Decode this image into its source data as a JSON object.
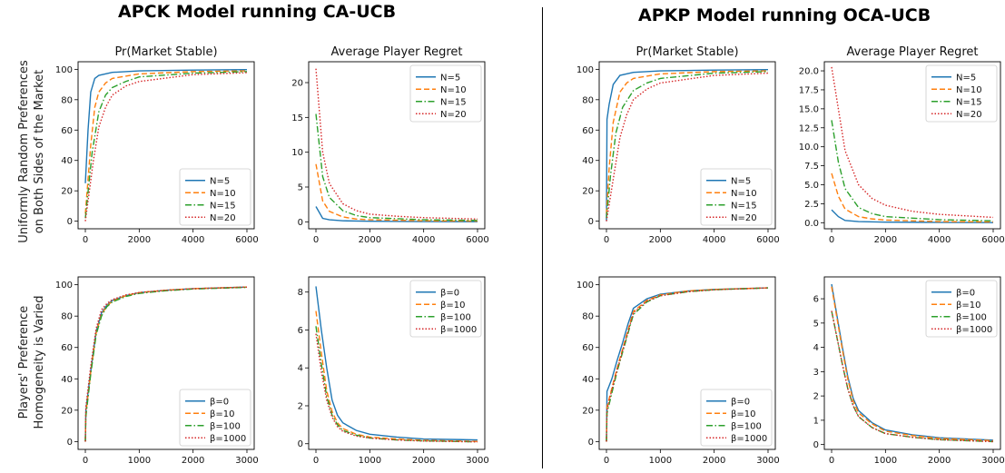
{
  "sections": [
    {
      "title": "APCK Model running CA-UCB"
    },
    {
      "title": "APKP Model running OCA-UCB"
    }
  ],
  "row_labels": [
    [
      "Uniformly Random Preferences",
      "on Both Sides of the Market"
    ],
    [
      "Players' Preference",
      "Homogeneity is Varied"
    ]
  ],
  "colors": {
    "s1": "#1f77b4",
    "s2": "#ff7f0e",
    "s3": "#2ca02c",
    "s4": "#d62728"
  },
  "chart_data": [
    {
      "type": "line",
      "title": "Pr(Market Stable)",
      "xlim": [
        0,
        6000
      ],
      "ylim": [
        0,
        100
      ],
      "xticks": [
        0,
        2000,
        4000,
        6000
      ],
      "yticks": [
        0,
        20,
        40,
        60,
        80,
        100
      ],
      "legend": "bottom-right",
      "series": [
        {
          "name": "N=5",
          "x": [
            0,
            100,
            200,
            350,
            500,
            1000,
            2000,
            4000,
            6000
          ],
          "y": [
            25,
            60,
            85,
            94,
            96,
            98,
            99,
            99.5,
            99.8
          ]
        },
        {
          "name": "N=10",
          "x": [
            0,
            200,
            350,
            500,
            750,
            1000,
            2000,
            4000,
            6000
          ],
          "y": [
            5,
            50,
            75,
            85,
            91,
            94,
            97,
            98.5,
            99
          ]
        },
        {
          "name": "N=15",
          "x": [
            0,
            250,
            500,
            750,
            1000,
            1500,
            2000,
            4000,
            6000
          ],
          "y": [
            2,
            45,
            72,
            83,
            88,
            92,
            95,
            97.5,
            98.5
          ]
        },
        {
          "name": "N=20",
          "x": [
            0,
            300,
            500,
            750,
            1000,
            1500,
            2000,
            4000,
            6000
          ],
          "y": [
            0,
            40,
            62,
            75,
            83,
            89,
            92,
            96.5,
            97.8
          ]
        }
      ]
    },
    {
      "type": "line",
      "title": "Average Player Regret",
      "xlim": [
        0,
        6000
      ],
      "ylim": [
        -1,
        23
      ],
      "xticks": [
        0,
        2000,
        4000,
        6000
      ],
      "yticks": [
        0,
        5,
        10,
        15,
        20
      ],
      "legend": "top-right",
      "series": [
        {
          "name": "N=5",
          "x": [
            0,
            250,
            500,
            1000,
            2000,
            4000,
            6000
          ],
          "y": [
            2.2,
            0.5,
            0.3,
            0.15,
            0.08,
            0.04,
            0.02
          ]
        },
        {
          "name": "N=10",
          "x": [
            0,
            250,
            500,
            1000,
            1500,
            2000,
            4000,
            6000
          ],
          "y": [
            8.3,
            3.0,
            1.5,
            0.7,
            0.4,
            0.3,
            0.15,
            0.1
          ]
        },
        {
          "name": "N=15",
          "x": [
            0,
            250,
            500,
            1000,
            1500,
            2000,
            4000,
            6000
          ],
          "y": [
            15.5,
            6.5,
            3.5,
            1.6,
            0.9,
            0.6,
            0.3,
            0.2
          ]
        },
        {
          "name": "N=20",
          "x": [
            0,
            250,
            500,
            1000,
            1500,
            2000,
            3000,
            4000,
            6000
          ],
          "y": [
            22,
            10,
            5.5,
            2.6,
            1.6,
            1.1,
            0.8,
            0.6,
            0.4
          ]
        }
      ]
    },
    {
      "type": "line",
      "title": "Pr(Market Stable)",
      "xlim": [
        0,
        6000
      ],
      "ylim": [
        0,
        100
      ],
      "xticks": [
        0,
        2000,
        4000,
        6000
      ],
      "yticks": [
        0,
        20,
        40,
        60,
        80,
        100
      ],
      "legend": "bottom-right",
      "series": [
        {
          "name": "N=5",
          "x": [
            0,
            20,
            100,
            250,
            500,
            1000,
            2000,
            4000,
            6000
          ],
          "y": [
            0,
            67,
            77,
            90,
            96,
            98,
            99,
            99.5,
            99.8
          ]
        },
        {
          "name": "N=10",
          "x": [
            0,
            100,
            250,
            500,
            750,
            1000,
            2000,
            4000,
            6000
          ],
          "y": [
            5,
            35,
            65,
            85,
            91,
            94,
            97,
            98.5,
            99
          ]
        },
        {
          "name": "N=15",
          "x": [
            0,
            150,
            350,
            600,
            1000,
            1500,
            2000,
            4000,
            6000
          ],
          "y": [
            2,
            30,
            58,
            75,
            86,
            91,
            94,
            97.5,
            98.5
          ]
        },
        {
          "name": "N=20",
          "x": [
            0,
            200,
            500,
            750,
            1000,
            1500,
            2000,
            4000,
            6000
          ],
          "y": [
            0,
            22,
            55,
            70,
            80,
            87,
            91,
            96,
            97.5
          ]
        }
      ]
    },
    {
      "type": "line",
      "title": "Average Player Regret",
      "xlim": [
        0,
        6000
      ],
      "ylim": [
        -0.8,
        21.2
      ],
      "xticks": [
        0,
        2000,
        4000,
        6000
      ],
      "yticks": [
        0,
        2.5,
        5,
        7.5,
        10,
        12.5,
        15,
        17.5,
        20
      ],
      "ytick_labels": [
        "0.0",
        "2.5",
        "5.0",
        "7.5",
        "10.0",
        "12.5",
        "15.0",
        "17.5",
        "20.0"
      ],
      "legend": "top-right",
      "series": [
        {
          "name": "N=5",
          "x": [
            0,
            250,
            500,
            1000,
            2000,
            4000,
            6000
          ],
          "y": [
            1.7,
            0.8,
            0.3,
            0.15,
            0.08,
            0.04,
            0.02
          ]
        },
        {
          "name": "N=10",
          "x": [
            0,
            250,
            500,
            1000,
            1500,
            2000,
            4000,
            6000
          ],
          "y": [
            6.5,
            3.5,
            1.8,
            0.8,
            0.5,
            0.35,
            0.15,
            0.1
          ]
        },
        {
          "name": "N=15",
          "x": [
            0,
            250,
            500,
            1000,
            1500,
            2000,
            4000,
            6000
          ],
          "y": [
            13.5,
            8,
            4.5,
            2,
            1.2,
            0.8,
            0.4,
            0.25
          ]
        },
        {
          "name": "N=20",
          "x": [
            0,
            250,
            500,
            1000,
            1500,
            2000,
            3000,
            4000,
            6000
          ],
          "y": [
            20.5,
            15,
            9.5,
            5,
            3.2,
            2.3,
            1.5,
            1.1,
            0.7
          ]
        }
      ]
    },
    {
      "type": "line",
      "title": "",
      "xlim": [
        0,
        3000
      ],
      "ylim": [
        0,
        100
      ],
      "xticks": [
        0,
        1000,
        2000,
        3000
      ],
      "yticks": [
        0,
        20,
        40,
        60,
        80,
        100
      ],
      "legend": "bottom-right",
      "series": [
        {
          "name": "β=0",
          "x": [
            0,
            10,
            100,
            200,
            300,
            400,
            500,
            750,
            1000,
            1500,
            2000,
            3000
          ],
          "y": [
            0,
            20,
            45,
            70,
            82,
            87,
            90,
            93,
            95,
            96.5,
            97.5,
            98.5
          ]
        },
        {
          "name": "β=10",
          "x": [
            0,
            10,
            100,
            200,
            300,
            400,
            500,
            750,
            1000,
            1500,
            2000,
            3000
          ],
          "y": [
            0,
            18,
            44,
            69,
            81,
            86.5,
            89.5,
            93,
            95,
            96.5,
            97.5,
            98.5
          ]
        },
        {
          "name": "β=100",
          "x": [
            0,
            10,
            100,
            200,
            300,
            400,
            500,
            750,
            1000,
            1500,
            2000,
            3000
          ],
          "y": [
            0,
            16,
            43,
            68,
            80,
            86,
            89,
            92.5,
            94.5,
            96.2,
            97.3,
            98.3
          ]
        },
        {
          "name": "β=1000",
          "x": [
            0,
            10,
            100,
            200,
            300,
            400,
            500,
            750,
            1000,
            1500,
            2000,
            3000
          ],
          "y": [
            0,
            22,
            48,
            72,
            84,
            88,
            90.5,
            93.5,
            95,
            96.5,
            97.5,
            98.5
          ]
        }
      ]
    },
    {
      "type": "line",
      "title": "",
      "xlim": [
        0,
        3000
      ],
      "ylim": [
        -0.3,
        8.8
      ],
      "xticks": [
        0,
        1000,
        2000,
        3000
      ],
      "yticks": [
        0,
        2,
        4,
        6,
        8
      ],
      "legend": "top-right",
      "series": [
        {
          "name": "β=0",
          "x": [
            0,
            100,
            200,
            300,
            400,
            500,
            750,
            1000,
            1500,
            2000,
            3000
          ],
          "y": [
            8.3,
            6,
            4,
            2.3,
            1.5,
            1.1,
            0.7,
            0.5,
            0.35,
            0.25,
            0.2
          ]
        },
        {
          "name": "β=10",
          "x": [
            0,
            100,
            200,
            300,
            400,
            500,
            750,
            1000,
            1500,
            2000,
            3000
          ],
          "y": [
            7,
            4.8,
            2.8,
            1.7,
            1.1,
            0.8,
            0.5,
            0.35,
            0.25,
            0.18,
            0.12
          ]
        },
        {
          "name": "β=100",
          "x": [
            0,
            100,
            200,
            300,
            400,
            500,
            750,
            1000,
            1500,
            2000,
            3000
          ],
          "y": [
            6.2,
            4.2,
            2.5,
            1.5,
            1.0,
            0.7,
            0.45,
            0.3,
            0.2,
            0.15,
            0.1
          ]
        },
        {
          "name": "β=1000",
          "x": [
            0,
            100,
            200,
            300,
            400,
            500,
            750,
            1000,
            1500,
            2000,
            3000
          ],
          "y": [
            5.8,
            3.8,
            2.3,
            1.4,
            0.9,
            0.65,
            0.4,
            0.3,
            0.2,
            0.14,
            0.1
          ]
        }
      ]
    },
    {
      "type": "line",
      "title": "",
      "xlim": [
        0,
        3000
      ],
      "ylim": [
        0,
        100
      ],
      "xticks": [
        0,
        1000,
        2000,
        3000
      ],
      "yticks": [
        0,
        20,
        40,
        60,
        80,
        100
      ],
      "legend": "bottom-right",
      "series": [
        {
          "name": "β=0",
          "x": [
            0,
            10,
            100,
            200,
            300,
            400,
            500,
            750,
            1000,
            1500,
            2000,
            3000
          ],
          "y": [
            0,
            32,
            40,
            52,
            63,
            75,
            85,
            91,
            94,
            96,
            97,
            98
          ]
        },
        {
          "name": "β=10",
          "x": [
            0,
            10,
            100,
            200,
            300,
            400,
            500,
            750,
            1000,
            1500,
            2000,
            3000
          ],
          "y": [
            0,
            22,
            34,
            47,
            59,
            71,
            83,
            90,
            93.5,
            96,
            97,
            98
          ]
        },
        {
          "name": "β=100",
          "x": [
            0,
            10,
            100,
            200,
            300,
            400,
            500,
            750,
            1000,
            1500,
            2000,
            3000
          ],
          "y": [
            0,
            18,
            31,
            45,
            57,
            69,
            81,
            89,
            93,
            95.5,
            96.8,
            98
          ]
        },
        {
          "name": "β=1000",
          "x": [
            0,
            10,
            100,
            200,
            300,
            400,
            500,
            750,
            1000,
            1500,
            2000,
            3000
          ],
          "y": [
            0,
            20,
            33,
            46,
            58,
            70,
            82,
            89.5,
            93,
            95.5,
            96.8,
            98
          ]
        }
      ]
    },
    {
      "type": "line",
      "title": "",
      "xlim": [
        0,
        3000
      ],
      "ylim": [
        -0.2,
        6.9
      ],
      "xticks": [
        0,
        1000,
        2000,
        3000
      ],
      "yticks": [
        0,
        1,
        2,
        3,
        4,
        5,
        6
      ],
      "legend": "top-right",
      "series": [
        {
          "name": "β=0",
          "x": [
            0,
            100,
            200,
            300,
            400,
            500,
            750,
            1000,
            1500,
            2000,
            3000
          ],
          "y": [
            6.6,
            5.3,
            4.0,
            2.8,
            1.9,
            1.4,
            0.9,
            0.6,
            0.4,
            0.28,
            0.18
          ]
        },
        {
          "name": "β=10",
          "x": [
            0,
            100,
            200,
            300,
            400,
            500,
            750,
            1000,
            1500,
            2000,
            3000
          ],
          "y": [
            6.5,
            5.2,
            3.9,
            2.7,
            1.8,
            1.3,
            0.85,
            0.55,
            0.37,
            0.25,
            0.16
          ]
        },
        {
          "name": "β=100",
          "x": [
            0,
            100,
            200,
            300,
            400,
            500,
            750,
            1000,
            1500,
            2000,
            3000
          ],
          "y": [
            5.5,
            4.4,
            3.3,
            2.3,
            1.6,
            1.15,
            0.7,
            0.45,
            0.3,
            0.2,
            0.12
          ]
        },
        {
          "name": "β=1000",
          "x": [
            0,
            100,
            200,
            300,
            400,
            500,
            750,
            1000,
            1500,
            2000,
            3000
          ],
          "y": [
            5.5,
            4.4,
            3.3,
            2.3,
            1.6,
            1.15,
            0.7,
            0.45,
            0.3,
            0.2,
            0.12
          ]
        }
      ]
    }
  ]
}
